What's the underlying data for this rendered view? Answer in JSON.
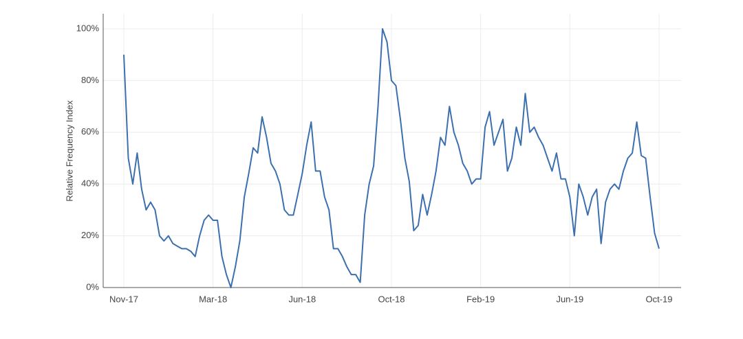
{
  "chart_data": {
    "type": "line",
    "ylabel": "Relative Frequency Index",
    "categories": [
      "Nov-17",
      null,
      null,
      null,
      null,
      null,
      null,
      null,
      null,
      null,
      null,
      null,
      null,
      null,
      null,
      null,
      null,
      null,
      null,
      null,
      "Mar-18",
      null,
      null,
      null,
      null,
      null,
      null,
      null,
      null,
      null,
      null,
      null,
      null,
      null,
      null,
      null,
      null,
      null,
      null,
      null,
      "Jun-18",
      null,
      null,
      null,
      null,
      null,
      null,
      null,
      null,
      null,
      null,
      null,
      null,
      null,
      null,
      null,
      null,
      null,
      null,
      null,
      "Oct-18",
      null,
      null,
      null,
      null,
      null,
      null,
      null,
      null,
      null,
      null,
      null,
      null,
      null,
      null,
      null,
      null,
      null,
      null,
      null,
      "Feb-19",
      null,
      null,
      null,
      null,
      null,
      null,
      null,
      null,
      null,
      null,
      null,
      null,
      null,
      null,
      null,
      null,
      null,
      null,
      null,
      "Jun-19",
      null,
      null,
      null,
      null,
      null,
      null,
      null,
      null,
      null,
      null,
      null,
      null,
      null,
      null,
      null,
      null,
      null,
      null,
      null,
      "Oct-19"
    ],
    "values": [
      90,
      50,
      40,
      52,
      38,
      30,
      33,
      30,
      20,
      18,
      20,
      17,
      16,
      15,
      15,
      14,
      12,
      20,
      26,
      28,
      26,
      26,
      12,
      5,
      0,
      8,
      18,
      35,
      44,
      54,
      52,
      66,
      58,
      48,
      45,
      40,
      30,
      28,
      28,
      36,
      44,
      55,
      64,
      45,
      45,
      35,
      30,
      15,
      15,
      12,
      8,
      5,
      5,
      2,
      28,
      40,
      47,
      70,
      100,
      95,
      80,
      78,
      65,
      50,
      41,
      22,
      24,
      36,
      28,
      36,
      45,
      58,
      55,
      70,
      60,
      55,
      48,
      45,
      40,
      42,
      42,
      62,
      68,
      55,
      60,
      65,
      45,
      50,
      62,
      55,
      75,
      60,
      62,
      58,
      55,
      50,
      45,
      52,
      42,
      42,
      35,
      20,
      40,
      35,
      28,
      35,
      38,
      17,
      33,
      38,
      40,
      38,
      45,
      50,
      52,
      64,
      51,
      50,
      35,
      21,
      15
    ],
    "color": "#3b6fae",
    "ylim": [
      0,
      100
    ],
    "yticks": [
      {
        "value": 0,
        "label": "0%"
      },
      {
        "value": 20,
        "label": "20%"
      },
      {
        "value": 40,
        "label": "40%"
      },
      {
        "value": 60,
        "label": "60%"
      },
      {
        "value": 80,
        "label": "80%"
      },
      {
        "value": 100,
        "label": "100%"
      }
    ],
    "grid": true
  }
}
